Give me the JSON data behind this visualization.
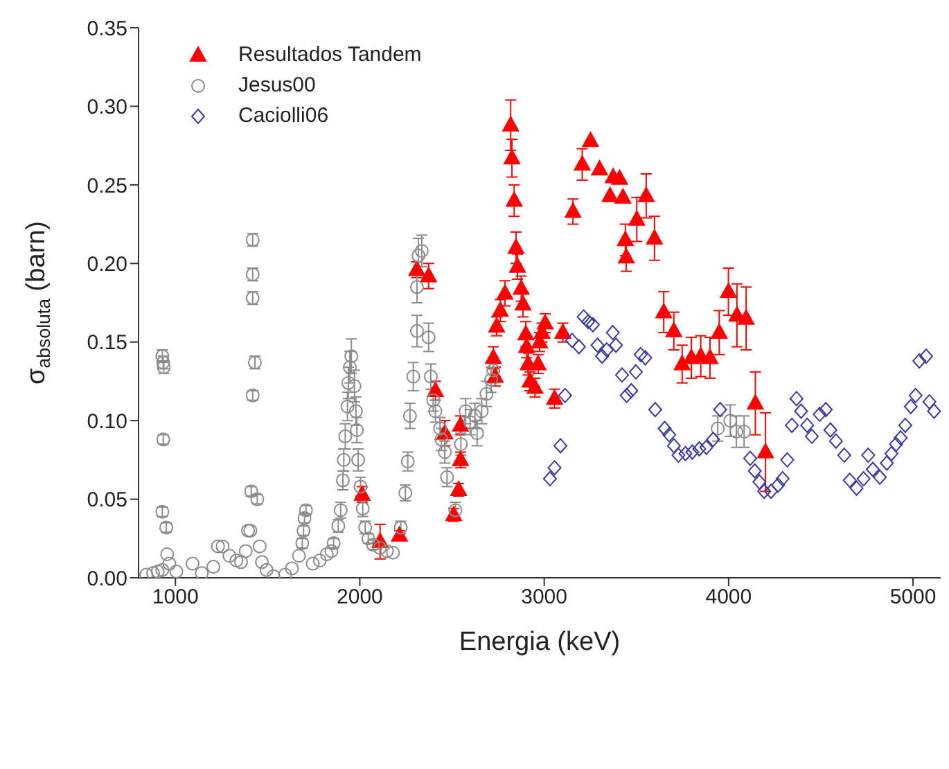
{
  "chart_data": {
    "type": "scatter",
    "xlabel": "Energia (keV)",
    "ylabel": "σ$_{absoluta}$ (barn)",
    "xlim": [
      800,
      5150
    ],
    "xticks": [
      1000,
      2000,
      3000,
      4000,
      5000
    ],
    "ylim": [
      0,
      0.35
    ],
    "yticks": [
      {
        "value": 0,
        "label": "0.00"
      },
      {
        "value": 0.05,
        "label": "0.05"
      },
      {
        "value": 0.1,
        "label": "0.10"
      },
      {
        "value": 0.15,
        "label": "0.15"
      },
      {
        "value": 0.2,
        "label": "0.20"
      },
      {
        "value": 0.25,
        "label": "0.25"
      },
      {
        "value": 0.3,
        "label": "0.30"
      },
      {
        "value": 0.35,
        "label": "0.35"
      }
    ],
    "grid": false,
    "legend": "top left",
    "series": [
      {
        "name": "Resultados Tandem",
        "color": "#ff0000",
        "marker": "triangle",
        "x": [
          2013,
          2110,
          2215,
          2309,
          2373,
          2410,
          2461,
          2509,
          2536,
          2546,
          2546,
          2724,
          2735,
          2742,
          2762,
          2787,
          2818,
          2825,
          2837,
          2847,
          2855,
          2875,
          2885,
          2900,
          2905,
          2913,
          2923,
          2950,
          2967,
          2975,
          2988,
          3005,
          3056,
          3101,
          3156,
          3206,
          3251,
          3300,
          3357,
          3374,
          3409,
          3427,
          3440,
          3445,
          3502,
          3553,
          3598,
          3648,
          3703,
          3748,
          3798,
          3849,
          3899,
          3949,
          3999,
          4045,
          4095,
          4145,
          4200
        ],
        "values": [
          0.053,
          0.023,
          0.027,
          0.196,
          0.192,
          0.119,
          0.092,
          0.04,
          0.056,
          0.075,
          0.097,
          0.14,
          0.128,
          0.16,
          0.17,
          0.181,
          0.288,
          0.267,
          0.24,
          0.21,
          0.198,
          0.184,
          0.174,
          0.155,
          0.147,
          0.136,
          0.125,
          0.121,
          0.136,
          0.15,
          0.156,
          0.162,
          0.114,
          0.156,
          0.233,
          0.263,
          0.278,
          0.26,
          0.243,
          0.255,
          0.254,
          0.242,
          0.215,
          0.204,
          0.228,
          0.243,
          0.216,
          0.169,
          0.157,
          0.136,
          0.14,
          0.141,
          0.14,
          0.156,
          0.182,
          0.167,
          0.165,
          0.111,
          0.08
        ],
        "errors": [
          0.005,
          0.011,
          0.003,
          0.005,
          0.008,
          0.006,
          0.008,
          0.004,
          0.004,
          0.005,
          0.006,
          0.007,
          0.006,
          0.006,
          0.007,
          0.008,
          0.016,
          0.012,
          0.01,
          0.01,
          0.008,
          0.008,
          0.008,
          0.008,
          0.007,
          0.007,
          0.006,
          0.006,
          0.006,
          0.006,
          0.006,
          0.006,
          0.006,
          0.006,
          0.008,
          0.01,
          null,
          null,
          null,
          null,
          null,
          null,
          0.01,
          0.009,
          0.014,
          0.014,
          0.014,
          0.013,
          0.012,
          0.012,
          0.013,
          0.013,
          0.013,
          0.014,
          0.015,
          0.02,
          0.02,
          0.02,
          0.025
        ]
      },
      {
        "name": "Jesus00",
        "color": "#8c8c8c",
        "marker": "circle",
        "x": [
          842,
          879,
          904,
          929,
          929,
          934,
          937,
          934,
          929,
          950,
          955,
          967,
          1005,
          1093,
          1143,
          1206,
          1231,
          1256,
          1293,
          1331,
          1356,
          1381,
          1394,
          1406,
          1419,
          1419,
          1419,
          1431,
          1419,
          1411,
          1444,
          1457,
          1469,
          1494,
          1532,
          1595,
          1632,
          1670,
          1688,
          1695,
          1700,
          1708,
          1745,
          1783,
          1821,
          1846,
          1858,
          1883,
          1896,
          1908,
          1913,
          1921,
          1933,
          1938,
          1946,
          1954,
          1971,
          1979,
          1984,
          1991,
          2004,
          2016,
          2029,
          2046,
          2072,
          2109,
          2147,
          2180,
          2222,
          2247,
          2260,
          2272,
          2290,
          2310,
          2310,
          2318,
          2336,
          2373,
          2385,
          2398,
          2410,
          2435,
          2443,
          2461,
          2473,
          2518,
          2548,
          2574,
          2598,
          2624,
          2636,
          2661,
          2687,
          2712,
          2724,
          3941,
          4009,
          4042,
          4084
        ],
        "values": [
          0.002,
          0.003,
          0.004,
          0.005,
          0.141,
          0.137,
          0.134,
          0.088,
          0.042,
          0.032,
          0.015,
          0.009,
          0.004,
          0.009,
          0.003,
          0.007,
          0.02,
          0.02,
          0.014,
          0.011,
          0.01,
          0.017,
          0.03,
          0.03,
          0.215,
          0.193,
          0.178,
          0.137,
          0.116,
          0.055,
          0.05,
          0.02,
          0.01,
          0.005,
          0.001,
          0.002,
          0.006,
          0.014,
          0.022,
          0.03,
          0.038,
          0.043,
          0.009,
          0.011,
          0.015,
          0.017,
          0.022,
          0.033,
          0.043,
          0.062,
          0.075,
          0.09,
          0.109,
          0.124,
          0.134,
          0.141,
          0.122,
          0.106,
          0.094,
          0.075,
          0.058,
          0.044,
          0.032,
          0.025,
          0.021,
          0.019,
          0.017,
          0.016,
          0.032,
          0.054,
          0.074,
          0.103,
          0.128,
          0.157,
          0.185,
          0.205,
          0.208,
          0.153,
          0.128,
          0.113,
          0.106,
          0.095,
          0.088,
          0.08,
          0.064,
          0.043,
          0.085,
          0.106,
          0.099,
          0.103,
          0.092,
          0.106,
          0.117,
          0.126,
          0.132,
          0.095,
          0.1,
          0.093,
          0.093
        ],
        "errors": [
          null,
          null,
          null,
          null,
          0.004,
          0.004,
          0.004,
          0.003,
          0.003,
          0.003,
          null,
          null,
          null,
          null,
          null,
          null,
          null,
          null,
          null,
          null,
          null,
          null,
          null,
          null,
          0.004,
          0.004,
          0.004,
          0.004,
          0.003,
          0.003,
          0.003,
          null,
          null,
          null,
          null,
          null,
          null,
          null,
          0.003,
          0.003,
          0.003,
          0.003,
          null,
          null,
          null,
          null,
          0.003,
          0.004,
          0.005,
          0.006,
          0.007,
          0.008,
          0.009,
          0.01,
          0.01,
          0.011,
          0.01,
          0.009,
          0.008,
          0.007,
          0.006,
          0.005,
          0.004,
          0.003,
          0.003,
          null,
          null,
          null,
          0.004,
          0.005,
          0.006,
          0.008,
          0.009,
          0.01,
          0.01,
          0.011,
          0.01,
          0.009,
          0.008,
          0.007,
          0.007,
          0.007,
          0.007,
          0.007,
          0.006,
          0.005,
          0.007,
          0.008,
          0.008,
          0.008,
          0.008,
          0.008,
          0.008,
          0.008,
          0.008,
          0.008,
          0.01,
          0.01,
          0.01
        ]
      },
      {
        "name": "Caciolli06",
        "color": "#3a3aa0",
        "marker": "diamond",
        "x": [
          3031,
          3056,
          3088,
          3113,
          3151,
          3188,
          3214,
          3239,
          3264,
          3289,
          3314,
          3339,
          3372,
          3389,
          3422,
          3447,
          3472,
          3497,
          3523,
          3548,
          3602,
          3653,
          3678,
          3703,
          3728,
          3766,
          3803,
          3841,
          3879,
          3916,
          3954,
          4117,
          4142,
          4167,
          4193,
          4230,
          4268,
          4293,
          4318,
          4343,
          4368,
          4393,
          4426,
          4451,
          4494,
          4527,
          4552,
          4582,
          4627,
          4657,
          4694,
          4732,
          4757,
          4782,
          4820,
          4858,
          4883,
          4908,
          4933,
          4958,
          4988,
          5014,
          5034,
          5071,
          5089,
          5114
        ],
        "values": [
          0.063,
          0.07,
          0.084,
          0.116,
          0.151,
          0.147,
          0.166,
          0.163,
          0.161,
          0.148,
          0.141,
          0.145,
          0.156,
          0.148,
          0.129,
          0.116,
          0.119,
          0.131,
          0.142,
          0.14,
          0.107,
          0.095,
          0.091,
          0.084,
          0.078,
          0.079,
          0.08,
          0.082,
          0.083,
          0.088,
          0.107,
          0.076,
          0.068,
          0.061,
          0.055,
          0.055,
          0.059,
          0.063,
          0.075,
          0.097,
          0.114,
          0.106,
          0.097,
          0.09,
          0.104,
          0.107,
          0.094,
          0.087,
          0.078,
          0.062,
          0.057,
          0.063,
          0.078,
          0.069,
          0.064,
          0.073,
          0.079,
          0.085,
          0.089,
          0.097,
          0.109,
          0.116,
          0.138,
          0.141,
          0.112,
          0.106
        ]
      }
    ]
  }
}
